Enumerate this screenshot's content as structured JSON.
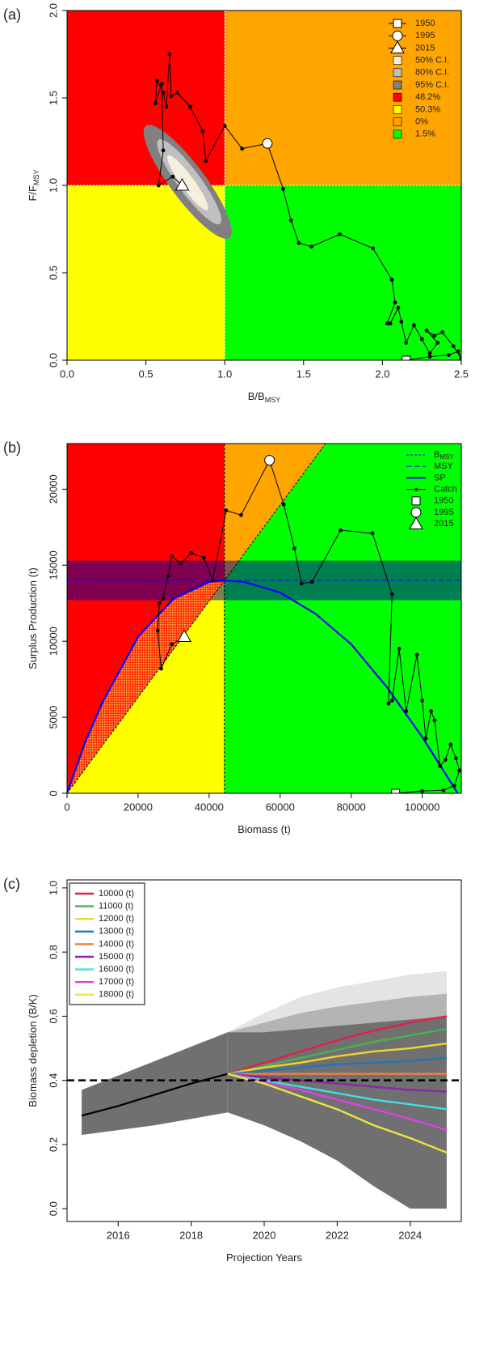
{
  "chart_data": [
    {
      "type": "kobe",
      "label": "(a)",
      "xlabel": "B/B",
      "xlabel_sub": "MSY",
      "ylabel": "F/F",
      "ylabel_sub": "MSY",
      "xlim": [
        0,
        2.5
      ],
      "ylim": [
        0,
        2
      ],
      "xticks": [
        {
          "value": 0,
          "label": "0.0"
        },
        {
          "value": 0.5,
          "label": "0.5"
        },
        {
          "value": 1,
          "label": "1.0"
        },
        {
          "value": 1.5,
          "label": "1.5"
        },
        {
          "value": 2,
          "label": "2.0"
        },
        {
          "value": 2.5,
          "label": "2.5"
        }
      ],
      "yticks": [
        {
          "value": 0,
          "label": "0.0"
        },
        {
          "value": 0.5,
          "label": "0.5"
        },
        {
          "value": 1,
          "label": "1.0"
        },
        {
          "value": 1.5,
          "label": "1.5"
        },
        {
          "value": 2,
          "label": "2.0"
        }
      ],
      "xref": 1,
      "yref": 1,
      "quadrants": [
        {
          "value": 48.2,
          "label": "48.2%",
          "color": "#ff0000"
        },
        {
          "value": 50.3,
          "label": "50.3%",
          "color": "#ffff00"
        },
        {
          "value": 0,
          "label": "0%",
          "color": "#ffa500"
        },
        {
          "value": 1.5,
          "label": "1.5%",
          "color": "#00ff00"
        }
      ],
      "ellipses": [
        {
          "name": "50% C.I.",
          "color": "#f5f0dc",
          "x": [
            0.64,
            0.89
          ],
          "y": [
            1.17,
            0.86
          ],
          "ratio": 0.2
        },
        {
          "name": "80% C.I.",
          "color": "#c0c0c0",
          "x": [
            0.58,
            0.97
          ],
          "y": [
            1.26,
            0.78
          ],
          "ratio": 0.22
        },
        {
          "name": "95% C.I.",
          "color": "#808080",
          "x": [
            0.5,
            1.03
          ],
          "y": [
            1.34,
            0.7
          ],
          "ratio": 0.25
        }
      ],
      "x": [
        2.15,
        2.3,
        2.42,
        2.48,
        2.5,
        2.45,
        2.38,
        2.33,
        2.28,
        2.35,
        2.3,
        2.25,
        2.2,
        2.15,
        2.12,
        2.1,
        2.05,
        2.03,
        2.08,
        2.06,
        1.94,
        1.73,
        1.55,
        1.47,
        1.42,
        1.37,
        1.27,
        1.11,
        1.0,
        0.88,
        0.86,
        0.78,
        0.7,
        0.66,
        0.65,
        0.63,
        0.61,
        0.57,
        0.56,
        0.6,
        0.61,
        0.58,
        0.67,
        0.73
      ],
      "y": [
        0.0,
        0.02,
        0.03,
        0.05,
        0.01,
        0.08,
        0.16,
        0.14,
        0.17,
        0.1,
        0.04,
        0.12,
        0.2,
        0.1,
        0.22,
        0.3,
        0.21,
        0.21,
        0.33,
        0.46,
        0.64,
        0.72,
        0.65,
        0.67,
        0.8,
        0.98,
        1.24,
        1.21,
        1.34,
        1.14,
        1.31,
        1.45,
        1.53,
        1.51,
        1.75,
        1.45,
        1.53,
        1.6,
        1.47,
        1.58,
        1.2,
        1.0,
        1.05,
        1.0
      ],
      "markers": [
        {
          "name": "1950",
          "shape": "square",
          "x": 2.15,
          "y": 0.0
        },
        {
          "name": "1995",
          "shape": "circle",
          "x": 1.27,
          "y": 1.24
        },
        {
          "name": "2015",
          "shape": "triangle",
          "x": 0.73,
          "y": 1.0
        }
      ]
    },
    {
      "type": "production",
      "label": "(b)",
      "xlabel": "Biomass (t)",
      "ylabel": "Surplus Production (t)",
      "xlim": [
        0,
        111000
      ],
      "ylim": [
        0,
        23000
      ],
      "xticks": [
        0,
        20000,
        40000,
        60000,
        80000,
        100000
      ],
      "yticks": [
        0,
        5000,
        10000,
        15000,
        20000
      ],
      "region_colors": [
        "#ff0000",
        "#ffff00",
        "#ffa500",
        "#00ff00"
      ],
      "bmsy": {
        "name": "B",
        "sub": "MSY",
        "value": 44300,
        "color": "#0000ff"
      },
      "msy": {
        "name": "MSY",
        "value": 14000,
        "color": "#0000ff"
      },
      "catch_band": [
        12700,
        15300
      ],
      "sp": {
        "name": "SP",
        "color": "#0000ff",
        "x": [
          0,
          5000,
          10000,
          20000,
          30000,
          40000,
          44300,
          50000,
          60000,
          70000,
          80000,
          90000,
          100000,
          110000
        ],
        "y": [
          0,
          3300,
          6000,
          10300,
          12800,
          13900,
          14000,
          13900,
          13200,
          11800,
          9800,
          7000,
          3700,
          0
        ]
      },
      "catch": {
        "name": "Catch",
        "x": [
          92500,
          100000,
          106000,
          109000,
          110500,
          109500,
          108000,
          106500,
          105000,
          103500,
          102500,
          101000,
          100000,
          98500,
          95500,
          93500,
          91500,
          90500,
          91500,
          86000,
          77000,
          69000,
          66000,
          64000,
          61000,
          57000,
          49000,
          44800,
          41000,
          38500,
          35000,
          32000,
          29500,
          28500,
          27000,
          26000,
          25500,
          26500,
          29500,
          33000
        ],
        "y": [
          0,
          150,
          200,
          500,
          1500,
          2300,
          3200,
          2200,
          1800,
          4800,
          5400,
          3600,
          6100,
          9100,
          5400,
          9500,
          6100,
          5900,
          13100,
          17100,
          17300,
          13900,
          13800,
          16100,
          19000,
          21900,
          18300,
          18600,
          14000,
          15500,
          15800,
          15100,
          15600,
          14300,
          12800,
          12500,
          10700,
          8200,
          9800,
          10300
        ]
      },
      "markers": [
        {
          "name": "1950",
          "shape": "square",
          "x": 92500,
          "y": 0
        },
        {
          "name": "1995",
          "shape": "circle",
          "x": 57000,
          "y": 21900
        },
        {
          "name": "2015",
          "shape": "triangle",
          "x": 33000,
          "y": 10300
        }
      ]
    },
    {
      "type": "line",
      "label": "(c)",
      "xlabel": "Projection Years",
      "ylabel": "Biomass depletion (B/K)",
      "xlim": [
        2014.6,
        2025.4
      ],
      "ylim": [
        -0.04,
        1.025
      ],
      "xticks": [
        2016,
        2018,
        2020,
        2022,
        2024
      ],
      "yticks": [
        {
          "value": 0,
          "label": "0.0"
        },
        {
          "value": 0.2,
          "label": "0.2"
        },
        {
          "value": 0.4,
          "label": "0.4"
        },
        {
          "value": 0.6,
          "label": "0.6"
        },
        {
          "value": 0.8,
          "label": "0.8"
        },
        {
          "value": 1,
          "label": "1.0"
        }
      ],
      "reference": 0.4,
      "bands": [
        {
          "color": "#707070",
          "x": [
            2015,
            2016,
            2017,
            2018,
            2019
          ],
          "lower": [
            0.23,
            0.245,
            0.26,
            0.28,
            0.3
          ],
          "upper": [
            0.37,
            0.415,
            0.46,
            0.505,
            0.55
          ]
        },
        {
          "color": "#e4e4e4",
          "x": [
            2019,
            2020,
            2021,
            2022,
            2023,
            2024,
            2025
          ],
          "lower": [
            0.55,
            0.55,
            0.56,
            0.57,
            0.58,
            0.59,
            0.6
          ],
          "upper": [
            0.55,
            0.61,
            0.66,
            0.69,
            0.71,
            0.73,
            0.74
          ]
        },
        {
          "color": "#b4b4b4",
          "x": [
            2019,
            2020,
            2021,
            2022,
            2023,
            2024,
            2025
          ],
          "lower": [
            0.55,
            0.55,
            0.56,
            0.57,
            0.58,
            0.59,
            0.6
          ],
          "upper": [
            0.55,
            0.58,
            0.61,
            0.63,
            0.645,
            0.66,
            0.67
          ]
        },
        {
          "color": "#707070",
          "x": [
            2019,
            2020,
            2021,
            2022,
            2023,
            2024,
            2025
          ],
          "lower": [
            0.3,
            0.26,
            0.21,
            0.15,
            0.07,
            0.0,
            0.0
          ],
          "upper": [
            0.55,
            0.55,
            0.56,
            0.57,
            0.58,
            0.59,
            0.6
          ]
        }
      ],
      "history": {
        "color": "#000000",
        "x": [
          2015,
          2016,
          2017,
          2018,
          2019
        ],
        "values": [
          0.29,
          0.32,
          0.355,
          0.39,
          0.42
        ]
      },
      "x": [
        2019,
        2020,
        2021,
        2022,
        2023,
        2024,
        2025
      ],
      "series": [
        {
          "name": "10000 (t)",
          "color": "#e0204a",
          "values": [
            0.42,
            0.455,
            0.49,
            0.525,
            0.555,
            0.58,
            0.6
          ]
        },
        {
          "name": "11000 (t)",
          "color": "#4cb050",
          "values": [
            0.42,
            0.445,
            0.47,
            0.495,
            0.52,
            0.54,
            0.56
          ]
        },
        {
          "name": "12000 (t)",
          "color": "#f2d22e",
          "values": [
            0.42,
            0.44,
            0.455,
            0.475,
            0.49,
            0.5,
            0.515
          ]
        },
        {
          "name": "13000 (t)",
          "color": "#1f77b4",
          "values": [
            0.42,
            0.43,
            0.44,
            0.45,
            0.455,
            0.46,
            0.47
          ]
        },
        {
          "name": "14000 (t)",
          "color": "#f08040",
          "values": [
            0.42,
            0.42,
            0.42,
            0.42,
            0.42,
            0.42,
            0.42
          ]
        },
        {
          "name": "15000 (t)",
          "color": "#8e24aa",
          "values": [
            0.42,
            0.41,
            0.4,
            0.39,
            0.38,
            0.37,
            0.365
          ]
        },
        {
          "name": "16000 (t)",
          "color": "#40e0e0",
          "values": [
            0.42,
            0.4,
            0.38,
            0.36,
            0.34,
            0.325,
            0.31
          ]
        },
        {
          "name": "17000 (t)",
          "color": "#e040e0",
          "values": [
            0.42,
            0.395,
            0.37,
            0.34,
            0.31,
            0.28,
            0.245
          ]
        },
        {
          "name": "18000 (t)",
          "color": "#e8e840",
          "values": [
            0.42,
            0.39,
            0.35,
            0.31,
            0.26,
            0.22,
            0.175
          ]
        }
      ]
    }
  ]
}
